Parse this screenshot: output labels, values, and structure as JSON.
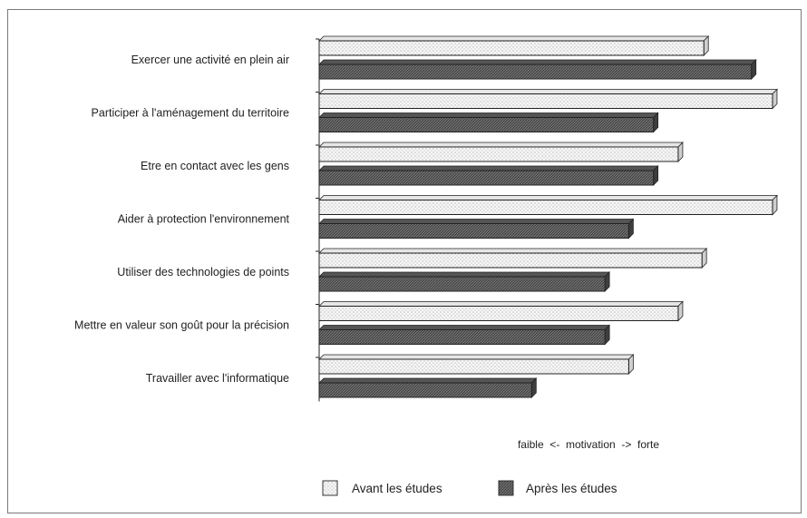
{
  "chart_data": {
    "type": "bar",
    "orientation": "horizontal",
    "style": "3d",
    "categories": [
      "Exercer une activité en plein air",
      "Participer à l'aménagement du territoire",
      "Etre en contact avec les gens",
      "Aider à protection l'environnement",
      "Utiliser des technologies de points",
      "Mettre en valeur son goût pour la précision",
      "Travailler avec l'informatique"
    ],
    "series": [
      {
        "name": "Avant les études",
        "values": [
          4.2,
          4.95,
          3.92,
          4.95,
          4.18,
          3.92,
          3.38
        ],
        "fill": "#f4f4f4",
        "pattern": "dotted"
      },
      {
        "name": "Après les études",
        "values": [
          4.72,
          3.65,
          3.65,
          3.38,
          3.12,
          3.12,
          2.32
        ],
        "fill": "#6e6e6e",
        "pattern": "hatched"
      }
    ],
    "xlim": [
      0,
      5
    ],
    "axis_note": "faible  <-  motivation  ->  forte",
    "legend_position": "bottom",
    "grid": false,
    "xticks_shown": false
  }
}
